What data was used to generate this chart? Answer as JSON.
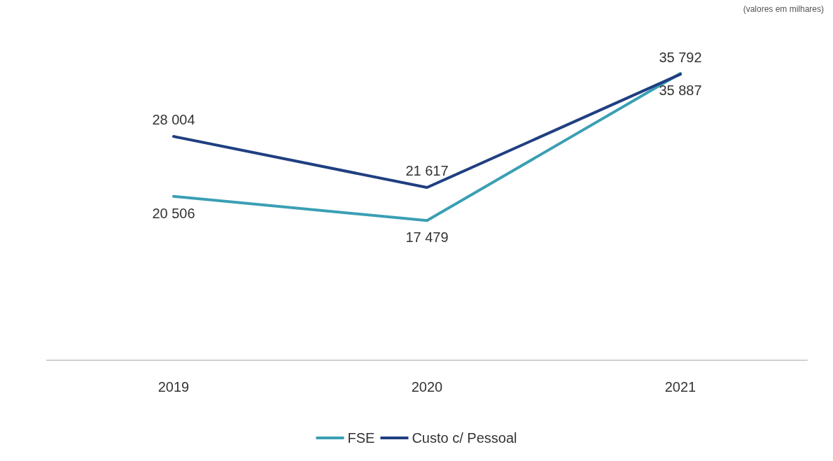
{
  "chart_data": {
    "type": "line",
    "annotations": [
      "(valores em milhares)"
    ],
    "categories": [
      "2019",
      "2020",
      "2021"
    ],
    "series": [
      {
        "name": "FSE",
        "color": "#3a9fb4",
        "values": [
          20506,
          17479,
          35887
        ],
        "value_labels": [
          "20 506",
          "17 479",
          "35 887"
        ]
      },
      {
        "name": "Custo c/ Pessoal",
        "color": "#1f3f80",
        "values": [
          28004,
          21617,
          35792
        ],
        "value_labels": [
          "28 004",
          "21 617",
          "35 792"
        ]
      }
    ],
    "tick_labels": "x",
    "legend": "bottom",
    "marker": "none",
    "line_style": "solid",
    "grid": false
  }
}
